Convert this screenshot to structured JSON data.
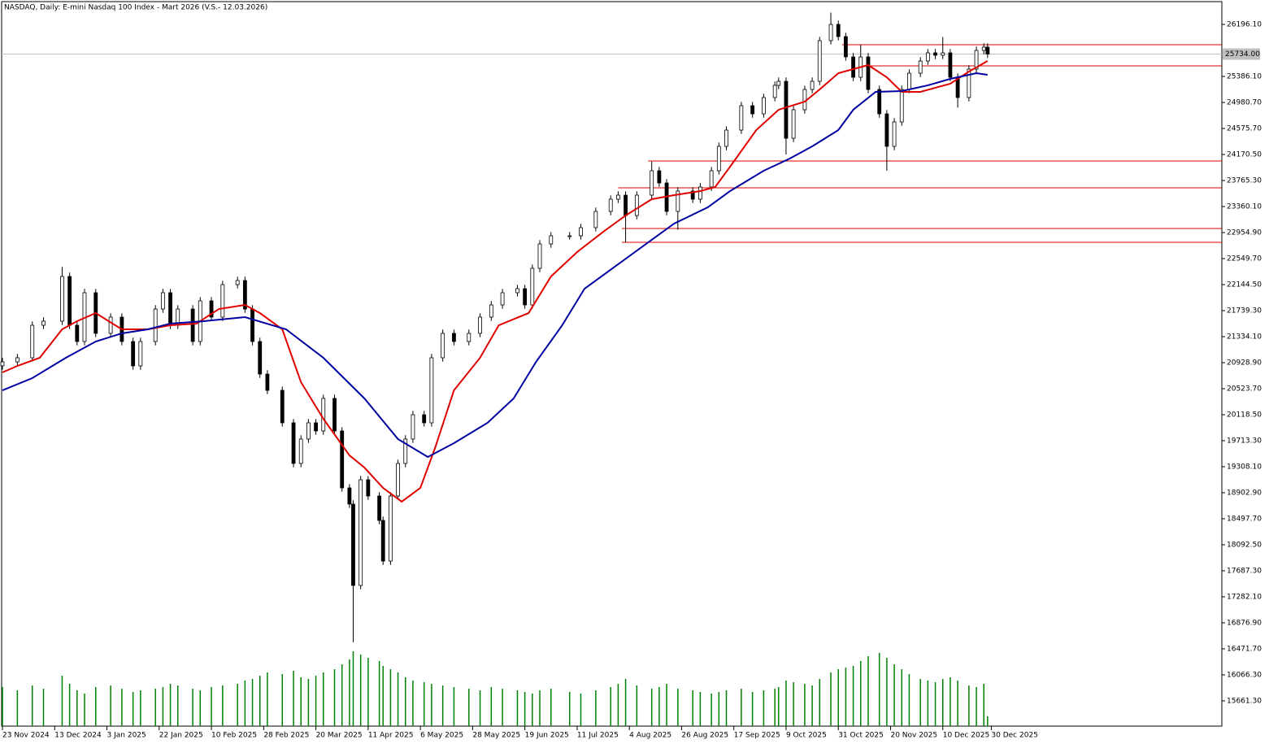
{
  "chart_data": {
    "type": "candlestick",
    "title": "NASDAQ, Daily:  E-mini Nasdaq 100 Index - Mart 2026 (V.S.- 12.03.2026)",
    "xlim": [
      0,
      327
    ],
    "ylim": [
      15269,
      26576
    ],
    "vlim": [
      0,
      100
    ],
    "x": [
      0,
      4,
      8,
      11,
      16,
      18,
      20,
      22,
      25,
      29,
      32,
      35,
      37,
      41,
      43,
      45,
      47,
      51,
      53,
      56,
      59,
      63,
      65,
      67,
      69,
      71,
      75,
      78,
      80,
      82,
      84,
      86,
      89,
      91,
      93,
      94,
      96,
      98,
      101,
      102,
      104,
      106,
      108,
      110,
      113,
      115,
      118,
      121,
      125,
      128,
      131,
      134,
      138,
      140,
      142,
      144,
      147,
      152,
      155,
      159,
      163,
      165,
      167,
      170,
      174,
      176,
      178,
      181,
      185,
      187,
      190,
      192,
      194,
      198,
      201,
      204,
      207,
      208,
      210,
      212,
      215,
      217,
      219,
      222,
      224,
      226,
      228,
      230,
      232,
      235,
      237,
      239,
      241,
      243,
      246,
      248,
      250,
      252,
      254,
      256,
      259,
      261,
      263,
      264
    ],
    "open": [
      20880,
      20941,
      21005,
      21511,
      21575,
      22271,
      21511,
      21258,
      22018,
      21385,
      21638,
      21258,
      20878,
      21258,
      21764,
      22018,
      21511,
      21764,
      21258,
      21891,
      21638,
      22144,
      22208,
      21764,
      21258,
      20751,
      20498,
      19992,
      19359,
      19739,
      19992,
      19865,
      20372,
      19865,
      18979,
      18726,
      17459,
      19105,
      18852,
      18472,
      17839,
      18852,
      19359,
      19739,
      20118,
      19992,
      21005,
      21385,
      21258,
      21385,
      21638,
      21828,
      22018,
      22081,
      21828,
      22398,
      22777,
      22904,
      22904,
      23031,
      23284,
      23474,
      23537,
      23220,
      23537,
      23917,
      23727,
      23284,
      23601,
      23474,
      23664,
      23917,
      24297,
      24550,
      24930,
      24803,
      25057,
      25247,
      25310,
      24423,
      24867,
      25183,
      25310,
      25943,
      26196,
      26006,
      25690,
      25373,
      25690,
      25183,
      24803,
      24297,
      24677,
      25183,
      25436,
      25626,
      25753,
      25715,
      25753,
      25373,
      25057,
      25500,
      25791,
      25842
    ],
    "high": [
      21001,
      21065,
      21571,
      21635,
      22420,
      22331,
      21571,
      22078,
      22078,
      21698,
      21698,
      21318,
      21318,
      21824,
      22078,
      22078,
      21824,
      21824,
      21951,
      21951,
      22204,
      22268,
      22268,
      21824,
      21318,
      20811,
      20558,
      20052,
      19799,
      20052,
      20052,
      20432,
      20432,
      19925,
      19039,
      18786,
      19165,
      19165,
      18912,
      18532,
      18912,
      19419,
      19799,
      20178,
      20178,
      21065,
      21445,
      21445,
      21445,
      21698,
      21888,
      22078,
      22141,
      22141,
      22458,
      22837,
      22964,
      22964,
      23091,
      23344,
      23534,
      23597,
      23597,
      23597,
      24060,
      23977,
      23787,
      23661,
      23661,
      23724,
      23977,
      24357,
      24610,
      24990,
      24990,
      25117,
      25307,
      25370,
      25370,
      24927,
      25243,
      25370,
      26003,
      26380,
      26256,
      26066,
      25750,
      25880,
      25750,
      25243,
      24863,
      24737,
      25243,
      25496,
      25686,
      25813,
      25813,
      26000,
      25813,
      25433,
      25560,
      25851,
      25902,
      25902
    ],
    "low": [
      20820,
      20881,
      20945,
      21451,
      21515,
      21451,
      21198,
      21198,
      21325,
      21325,
      21198,
      20818,
      20818,
      21198,
      21704,
      21451,
      21451,
      21198,
      21198,
      21578,
      21578,
      22084,
      21704,
      21198,
      20691,
      20438,
      19932,
      19299,
      19299,
      19679,
      19805,
      19805,
      19805,
      18919,
      18666,
      16575,
      17399,
      18792,
      18412,
      17779,
      17779,
      18792,
      19299,
      19679,
      19932,
      19932,
      20945,
      21198,
      21198,
      21325,
      21578,
      21768,
      21958,
      21768,
      21768,
      22338,
      22717,
      22844,
      22844,
      22971,
      23224,
      23414,
      22800,
      23160,
      23477,
      23667,
      23224,
      23000,
      23414,
      23414,
      23604,
      23857,
      24237,
      24490,
      24743,
      24743,
      24997,
      25187,
      24170,
      24363,
      24807,
      25123,
      25250,
      25883,
      25946,
      25630,
      25313,
      25313,
      25123,
      24743,
      23917,
      24237,
      24617,
      25123,
      25376,
      25566,
      25655,
      25655,
      25313,
      24900,
      24997,
      25440,
      25731,
      25674
    ],
    "close": [
      20941,
      21005,
      21511,
      21575,
      22271,
      21511,
      21258,
      22018,
      21385,
      21638,
      21258,
      20878,
      21258,
      21764,
      22018,
      21511,
      21764,
      21258,
      21891,
      21638,
      22144,
      22208,
      21764,
      21258,
      20751,
      20498,
      19992,
      19359,
      19739,
      19992,
      19865,
      20372,
      19865,
      18979,
      18726,
      17459,
      19105,
      18852,
      18472,
      17839,
      18852,
      19359,
      19739,
      20118,
      19992,
      21005,
      21385,
      21258,
      21385,
      21638,
      21828,
      22018,
      22081,
      21828,
      22398,
      22777,
      22904,
      22904,
      23031,
      23284,
      23474,
      23537,
      23220,
      23537,
      23917,
      23727,
      23284,
      23601,
      23474,
      23664,
      23917,
      24297,
      24550,
      24930,
      24803,
      25057,
      25247,
      25310,
      24423,
      24867,
      25183,
      25310,
      25943,
      26196,
      26006,
      25690,
      25373,
      25690,
      25183,
      24803,
      24297,
      24677,
      25183,
      25436,
      25626,
      25753,
      25715,
      25753,
      25373,
      25057,
      25500,
      25791,
      25842,
      25734
    ],
    "volume": [
      48,
      44,
      50,
      46,
      62,
      52,
      44,
      40,
      48,
      50,
      46,
      42,
      44,
      46,
      48,
      52,
      50,
      46,
      44,
      48,
      50,
      52,
      56,
      58,
      62,
      66,
      64,
      68,
      60,
      58,
      62,
      66,
      70,
      76,
      82,
      92,
      88,
      84,
      80,
      74,
      70,
      66,
      60,
      56,
      54,
      52,
      50,
      48,
      46,
      44,
      48,
      46,
      44,
      42,
      40,
      44,
      46,
      42,
      40,
      44,
      48,
      52,
      58,
      50,
      46,
      48,
      52,
      46,
      44,
      42,
      40,
      42,
      44,
      46,
      42,
      44,
      46,
      48,
      56,
      54,
      52,
      50,
      58,
      66,
      70,
      72,
      74,
      80,
      86,
      90,
      84,
      76,
      70,
      64,
      58,
      56,
      54,
      58,
      60,
      56,
      50,
      48,
      52,
      12
    ],
    "volume_color": "#008000",
    "series": [
      {
        "color": "#e00000",
        "x": [
          0,
          4,
          10,
          16,
          20,
          25,
          32,
          39,
          45,
          52,
          58,
          65,
          69,
          75,
          80,
          86,
          93,
          97,
          102,
          107,
          112,
          116,
          121,
          128,
          133,
          141,
          147,
          154,
          161,
          167,
          174,
          180,
          187,
          191,
          195,
          202,
          208,
          215,
          219,
          224,
          228,
          232,
          237,
          241,
          246,
          250,
          254,
          259,
          264
        ],
        "values": [
          20777,
          20878,
          21005,
          21448,
          21575,
          21701,
          21448,
          21448,
          21511,
          21537,
          21764,
          21828,
          21701,
          21448,
          20625,
          20055,
          19485,
          19295,
          18979,
          18764,
          18979,
          19612,
          20498,
          21005,
          21511,
          21701,
          22271,
          22651,
          22967,
          23220,
          23474,
          23537,
          23600,
          23664,
          23980,
          24550,
          24867,
          24993,
          25183,
          25436,
          25500,
          25563,
          25373,
          25145,
          25145,
          25209,
          25272,
          25462,
          25626
        ]
      },
      {
        "color": "#0000a0",
        "x": [
          0,
          8,
          17,
          25,
          32,
          39,
          45,
          54,
          65,
          76,
          86,
          97,
          106,
          114,
          121,
          130,
          137,
          143,
          150,
          156,
          165,
          174,
          180,
          189,
          195,
          204,
          211,
          217,
          224,
          228,
          234,
          241,
          248,
          254,
          261,
          264
        ],
        "values": [
          20498,
          20688,
          21005,
          21258,
          21385,
          21448,
          21537,
          21575,
          21638,
          21448,
          21005,
          20372,
          19739,
          19460,
          19675,
          19992,
          20372,
          20941,
          21511,
          22081,
          22461,
          22841,
          23094,
          23347,
          23601,
          23917,
          24107,
          24297,
          24550,
          24867,
          25145,
          25158,
          25247,
          25348,
          25436,
          25411
        ]
      }
    ],
    "levels": {
      "color": "#e00000",
      "values": [
        25880,
        25550,
        24069,
        23651,
        23018,
        22803
      ],
      "from": [
        225,
        230,
        173,
        165,
        166,
        166
      ]
    },
    "price_label": {
      "value": 25734,
      "label": "25734.00"
    },
    "yticks": [
      {
        "value": 26196.1,
        "label": "26196.10"
      },
      {
        "value": 25386.1,
        "label": "25386.10"
      },
      {
        "value": 24980.7,
        "label": "24980.70"
      },
      {
        "value": 24575.7,
        "label": "24575.70"
      },
      {
        "value": 24170.5,
        "label": "24170.50"
      },
      {
        "value": 23765.3,
        "label": "23765.30"
      },
      {
        "value": 23360.1,
        "label": "23360.10"
      },
      {
        "value": 22954.9,
        "label": "22954.90"
      },
      {
        "value": 22549.7,
        "label": "22549.70"
      },
      {
        "value": 22144.5,
        "label": "22144.50"
      },
      {
        "value": 21739.3,
        "label": "21739.30"
      },
      {
        "value": 21334.1,
        "label": "21334.10"
      },
      {
        "value": 20928.9,
        "label": "20928.90"
      },
      {
        "value": 20523.7,
        "label": "20523.70"
      },
      {
        "value": 20118.5,
        "label": "20118.50"
      },
      {
        "value": 19713.3,
        "label": "19713.30"
      },
      {
        "value": 19308.1,
        "label": "19308.10"
      },
      {
        "value": 18902.9,
        "label": "18902.90"
      },
      {
        "value": 18497.7,
        "label": "18497.70"
      },
      {
        "value": 18092.5,
        "label": "18092.50"
      },
      {
        "value": 17687.3,
        "label": "17687.30"
      },
      {
        "value": 17282.1,
        "label": "17282.10"
      },
      {
        "value": 16876.9,
        "label": "16876.90"
      },
      {
        "value": 16471.7,
        "label": "16471.70"
      },
      {
        "value": 16066.3,
        "label": "16066.30"
      },
      {
        "value": 15661.3,
        "label": "15661.30"
      }
    ],
    "xticks": [
      {
        "value": 0,
        "label": "23 Nov 2024"
      },
      {
        "value": 14,
        "label": "13 Dec 2024"
      },
      {
        "value": 28,
        "label": "3 Jan 2025"
      },
      {
        "value": 42,
        "label": "22 Jan 2025"
      },
      {
        "value": 56,
        "label": "10 Feb 2025"
      },
      {
        "value": 70,
        "label": "28 Feb 2025"
      },
      {
        "value": 84,
        "label": "20 Mar 2025"
      },
      {
        "value": 98,
        "label": "11 Apr 2025"
      },
      {
        "value": 112,
        "label": "6 May 2025"
      },
      {
        "value": 126,
        "label": "28 May 2025"
      },
      {
        "value": 140,
        "label": "19 Jun 2025"
      },
      {
        "value": 154,
        "label": "11 Jul 2025"
      },
      {
        "value": 168,
        "label": "4 Aug 2025"
      },
      {
        "value": 182,
        "label": "26 Aug 2025"
      },
      {
        "value": 196,
        "label": "17 Sep 2025"
      },
      {
        "value": 210,
        "label": "9 Oct 2025"
      },
      {
        "value": 224,
        "label": "31 Oct 2025"
      },
      {
        "value": 238,
        "label": "20 Nov 2025"
      },
      {
        "value": 252,
        "label": "10 Dec 2025"
      },
      {
        "value": 265,
        "label": "30 Dec 2025"
      }
    ]
  }
}
